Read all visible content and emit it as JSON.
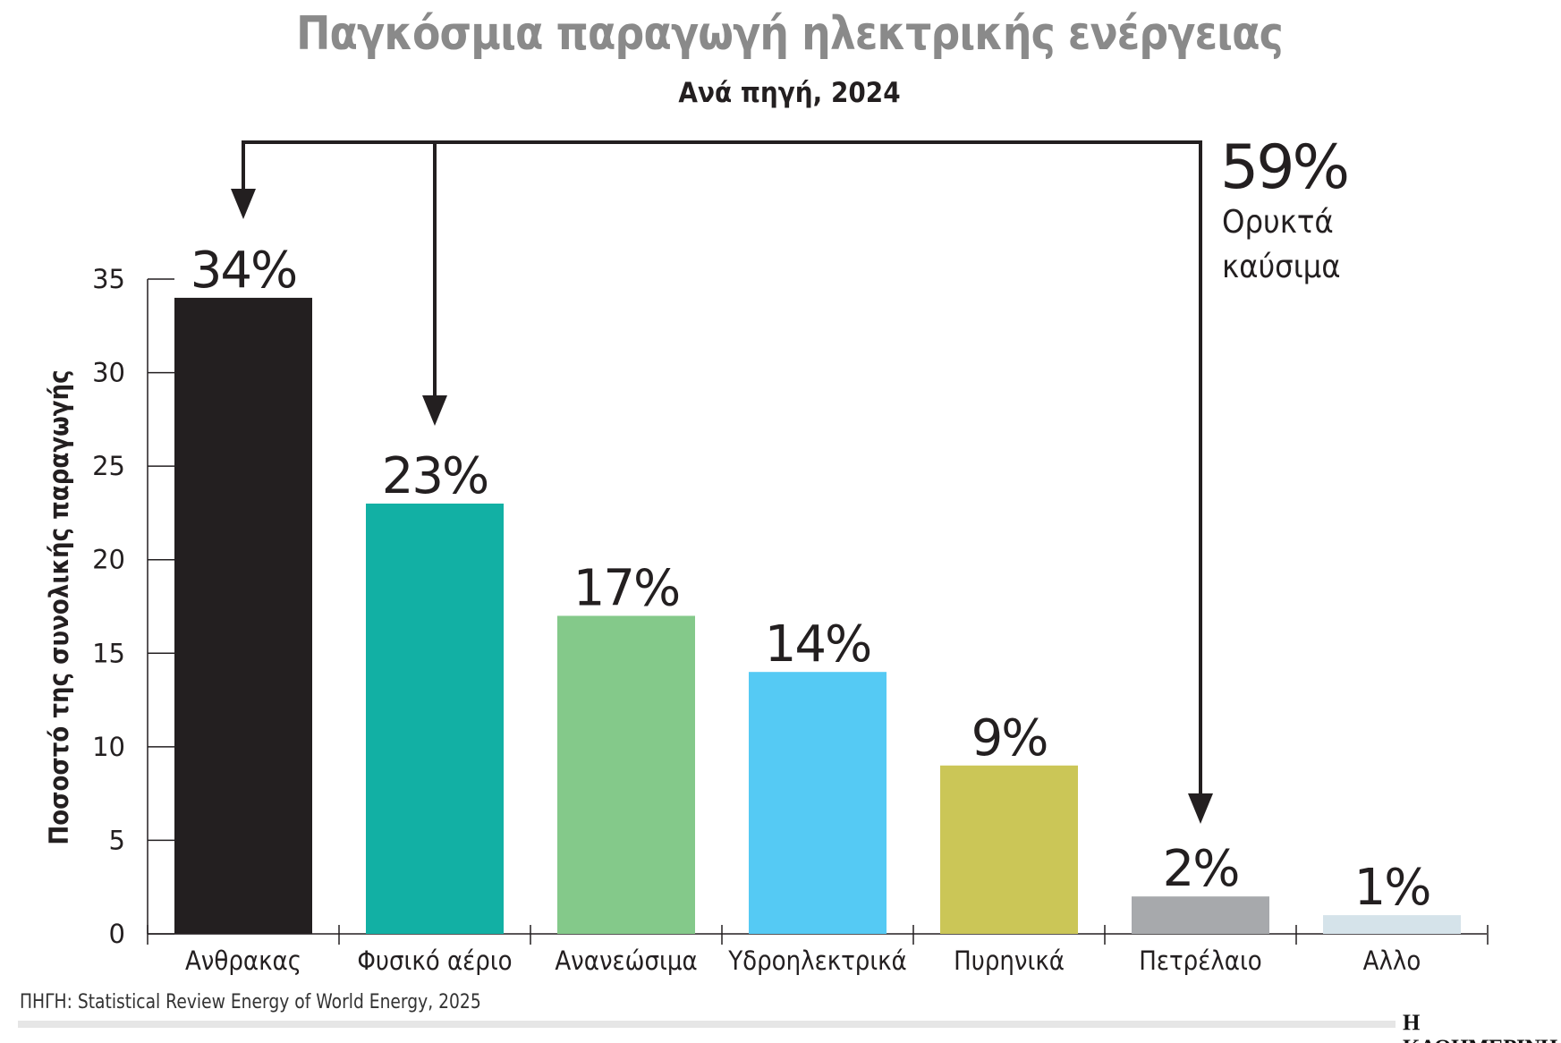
{
  "title": "Παγκόσμια παραγωγή ηλεκτρικής ενέργειας",
  "subtitle": "Ανά πηγή, 2024",
  "annotation": {
    "value": "59%",
    "label_line1": "Ορυκτά",
    "label_line2": "καύσιμα"
  },
  "source": "ΠΗΓΗ: Statistical Review Energy of World Energy, 2025",
  "logo": "Η ΚΑΘΗΜΕΡΙΝΗ",
  "chart_data": {
    "type": "bar",
    "categories": [
      "Ανθρακας",
      "Φυσικό αέριο",
      "Ανανεώσιμα",
      "Υδροηλεκτρικά",
      "Πυρηνικά",
      "Πετρέλαιο",
      "Αλλο"
    ],
    "values": [
      34,
      23,
      17,
      14,
      9,
      2,
      1
    ],
    "data_labels": [
      "34%",
      "23%",
      "17%",
      "14%",
      "9%",
      "2%",
      "1%"
    ],
    "colors": [
      "#231f20",
      "#12b0a4",
      "#84c98a",
      "#55caf4",
      "#cbc657",
      "#a7a9ac",
      "#d5e3ea"
    ],
    "ylabel": "Ποσοστό της συνολικής παραγωγής",
    "xlabel": "",
    "ylim": [
      0,
      35
    ],
    "yticks": [
      0,
      5,
      10,
      15,
      20,
      25,
      30,
      35
    ],
    "grid": false,
    "bracket_groups": [
      "Ανθρακας",
      "Φυσικό αέριο",
      "Πετρέλαιο"
    ]
  }
}
